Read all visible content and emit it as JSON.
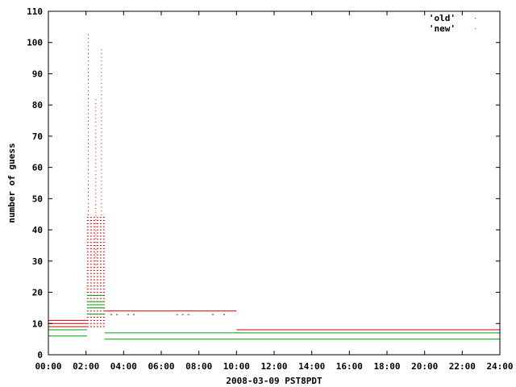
{
  "chart_data": {
    "type": "scatter",
    "title": "",
    "xlabel": "2008-03-09 PST8PDT",
    "ylabel": "number of guess",
    "xlim_hours": [
      0,
      24
    ],
    "ylim": [
      0,
      110
    ],
    "x_ticks": [
      "00:00",
      "02:00",
      "04:00",
      "06:00",
      "08:00",
      "10:00",
      "12:00",
      "14:00",
      "16:00",
      "18:00",
      "20:00",
      "22:00",
      "24:00"
    ],
    "y_ticks": [
      0,
      10,
      20,
      30,
      40,
      50,
      60,
      70,
      80,
      90,
      100,
      110
    ],
    "grid": false,
    "legend_position": "top-right",
    "colors": {
      "old": "#cc0000",
      "new": "#00a000"
    },
    "series": [
      {
        "name": "'old'",
        "color": "#cc0000",
        "segments": [
          {
            "x_start": 0.0,
            "x_end": 2.05,
            "y_values": [
              11,
              10,
              9
            ]
          },
          {
            "x_start": 3.0,
            "x_end": 10.0,
            "y_values": [
              14
            ]
          },
          {
            "x_start": 10.0,
            "x_end": 24.0,
            "y_values": [
              8
            ]
          }
        ],
        "burst": {
          "x_start": 2.05,
          "x_end": 3.0,
          "y_min": 9,
          "y_max": 44,
          "peaks": [
            {
              "x": 2.1,
              "y_min": 45,
              "y_max": 103
            },
            {
              "x": 2.8,
              "y_min": 45,
              "y_max": 99
            },
            {
              "x": 2.5,
              "y_min": 29,
              "y_max": 82
            }
          ]
        },
        "scatter_points": [
          {
            "x": 3.3,
            "y": 13
          },
          {
            "x": 3.6,
            "y": 13
          },
          {
            "x": 4.2,
            "y": 13
          },
          {
            "x": 4.5,
            "y": 13
          },
          {
            "x": 6.8,
            "y": 13
          },
          {
            "x": 7.1,
            "y": 13
          },
          {
            "x": 7.4,
            "y": 13
          },
          {
            "x": 8.7,
            "y": 13
          },
          {
            "x": 9.3,
            "y": 13
          }
        ]
      },
      {
        "name": "'new'",
        "color": "#00a000",
        "segments": [
          {
            "x_start": 0.0,
            "x_end": 2.05,
            "y_values": [
              8,
              6
            ]
          },
          {
            "x_start": 2.05,
            "x_end": 3.0,
            "y_values": [
              19,
              17,
              16,
              15,
              13
            ]
          },
          {
            "x_start": 3.0,
            "x_end": 24.0,
            "y_values": [
              7
            ]
          },
          {
            "x_start": 3.0,
            "x_end": 24.0,
            "y_values": [
              5
            ]
          }
        ]
      }
    ]
  }
}
